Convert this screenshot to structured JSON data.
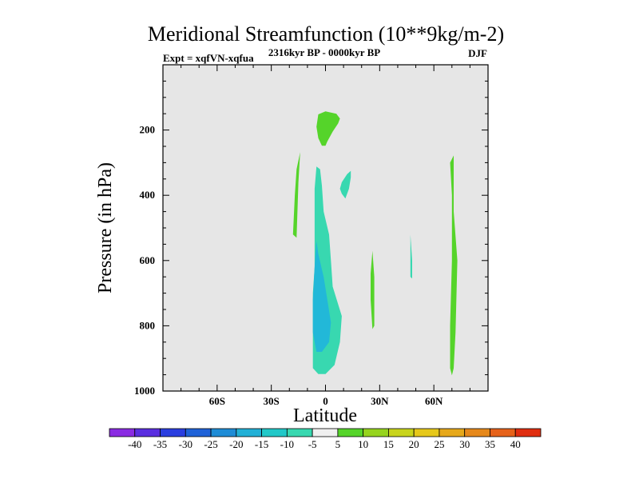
{
  "chart_data": {
    "type": "filled-contour",
    "title": "Meridional Streamfunction (10**9kg/m-2)",
    "left_label": "Expt = xqfVN-xqfua",
    "center_label": "2316kyr BP - 0000kyr BP",
    "right_label": "DJF",
    "xlabel": "Latitude",
    "ylabel": "Pressure (in hPa)",
    "xlim": [
      -90,
      90
    ],
    "ylim": [
      1000,
      0
    ],
    "x_ticks": [
      {
        "value": -60,
        "label": "60S"
      },
      {
        "value": -30,
        "label": "30S"
      },
      {
        "value": 0,
        "label": "0"
      },
      {
        "value": 30,
        "label": "30N"
      },
      {
        "value": 60,
        "label": "60N"
      }
    ],
    "y_ticks": [
      {
        "value": 200,
        "label": "200"
      },
      {
        "value": 400,
        "label": "400"
      },
      {
        "value": 600,
        "label": "600"
      },
      {
        "value": 800,
        "label": "800"
      },
      {
        "value": 1000,
        "label": "1000"
      }
    ],
    "x_minor_step": 10,
    "y_minor_step": 50,
    "background_color": "#e6e6e6",
    "regions": [
      {
        "name": "upper-positive-cell",
        "level": "5 to 10",
        "color": "#55d42a",
        "points": [
          [
            -4,
            152
          ],
          [
            0,
            143
          ],
          [
            6,
            150
          ],
          [
            8,
            165
          ],
          [
            7,
            180
          ],
          [
            4,
            205
          ],
          [
            1,
            235
          ],
          [
            0,
            248
          ],
          [
            -2,
            248
          ],
          [
            -4,
            225
          ],
          [
            -5,
            190
          ]
        ]
      },
      {
        "name": "southern-positive-cell",
        "level": "5 to 10",
        "color": "#55d42a",
        "points": [
          [
            -14,
            268
          ],
          [
            -15,
            360
          ],
          [
            -16,
            530
          ],
          [
            -18,
            520
          ],
          [
            -17,
            400
          ],
          [
            -16,
            320
          ]
        ]
      },
      {
        "name": "negative-cell-outer",
        "level": "-10 to -5",
        "color": "#38d8b0",
        "points": [
          [
            -5,
            312
          ],
          [
            -3,
            320
          ],
          [
            -2,
            370
          ],
          [
            -1,
            450
          ],
          [
            2,
            520
          ],
          [
            3,
            600
          ],
          [
            4,
            680
          ],
          [
            9,
            770
          ],
          [
            8,
            850
          ],
          [
            5,
            920
          ],
          [
            0,
            948
          ],
          [
            -4,
            948
          ],
          [
            -7,
            930
          ],
          [
            -7,
            870
          ],
          [
            -7,
            790
          ],
          [
            -7,
            700
          ],
          [
            -6,
            620
          ],
          [
            -6,
            500
          ],
          [
            -6,
            380
          ]
        ]
      },
      {
        "name": "negative-cell-inner",
        "level": "-15 to -10",
        "color": "#22b8d8",
        "points": [
          [
            -5,
            540
          ],
          [
            -4,
            580
          ],
          [
            -1,
            650
          ],
          [
            1,
            720
          ],
          [
            3,
            790
          ],
          [
            2,
            850
          ],
          [
            -2,
            880
          ],
          [
            -5,
            880
          ],
          [
            -7,
            820
          ],
          [
            -7,
            720
          ],
          [
            -6,
            620
          ]
        ]
      },
      {
        "name": "small-negative-cell-upper",
        "level": "-10 to -5",
        "color": "#38d8b0",
        "points": [
          [
            8,
            380
          ],
          [
            9,
            360
          ],
          [
            12,
            335
          ],
          [
            14,
            325
          ],
          [
            14,
            345
          ],
          [
            13,
            380
          ],
          [
            11,
            410
          ],
          [
            9,
            395
          ]
        ]
      },
      {
        "name": "northern-positive-patch",
        "level": "5 to 10",
        "color": "#55d42a",
        "points": [
          [
            26,
            570
          ],
          [
            27,
            650
          ],
          [
            27,
            800
          ],
          [
            26,
            810
          ],
          [
            25,
            720
          ],
          [
            25,
            640
          ]
        ]
      },
      {
        "name": "small-negative-patch",
        "level": "-10 to -5",
        "color": "#38d8b0",
        "points": [
          [
            47,
            520
          ],
          [
            48,
            600
          ],
          [
            48,
            655
          ],
          [
            47,
            650
          ],
          [
            47,
            580
          ]
        ]
      },
      {
        "name": "high-latitude-positive-cell",
        "level": "5 to 10",
        "color": "#55d42a",
        "points": [
          [
            71,
            278
          ],
          [
            71,
            450
          ],
          [
            73,
            600
          ],
          [
            72,
            820
          ],
          [
            71,
            930
          ],
          [
            70,
            952
          ],
          [
            69,
            930
          ],
          [
            69,
            800
          ],
          [
            70,
            600
          ],
          [
            70,
            400
          ],
          [
            69,
            300
          ]
        ]
      }
    ],
    "colorbar": {
      "boundary_labels": [
        "-40",
        "-35",
        "-30",
        "-25",
        "-20",
        "-15",
        "-10",
        "-5",
        "5",
        "10",
        "15",
        "20",
        "25",
        "30",
        "35",
        "40"
      ],
      "colors": [
        "#8a2be2",
        "#5a2ee0",
        "#2a3ee0",
        "#1f62d8",
        "#1e8cd6",
        "#21b0d6",
        "#21c8c8",
        "#38d8b0",
        "#f0f0f0",
        "#55d42a",
        "#96d41e",
        "#c8d41c",
        "#e6c81a",
        "#e6a81a",
        "#e6881a",
        "#e6621a",
        "#e02e10"
      ]
    }
  }
}
